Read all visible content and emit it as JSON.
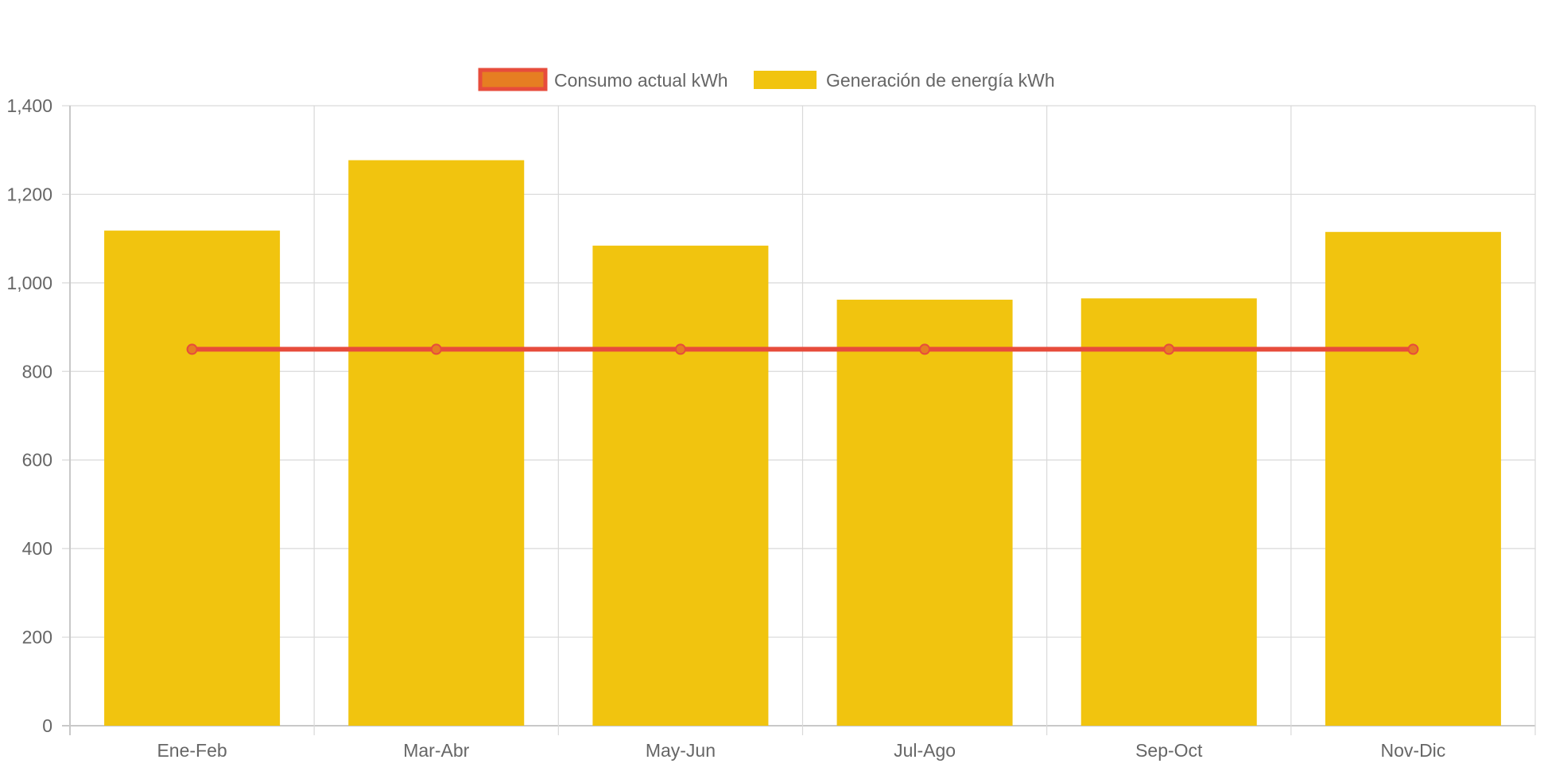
{
  "chart_data": {
    "type": "bar",
    "title": "",
    "xlabel": "",
    "ylabel": "",
    "categories": [
      "Ene-Feb",
      "Mar-Abr",
      "May-Jun",
      "Jul-Ago",
      "Sep-Oct",
      "Nov-Dic"
    ],
    "ylim": [
      0,
      1400
    ],
    "yticks": [
      0,
      200,
      400,
      600,
      800,
      1000,
      1200,
      1400
    ],
    "ytick_labels": [
      "0",
      "200",
      "400",
      "600",
      "800",
      "1,000",
      "1,200",
      "1,400"
    ],
    "grid": true,
    "legend_position": "top-center",
    "series": [
      {
        "name": "Consumo actual kWh",
        "type": "line",
        "values": [
          850,
          850,
          850,
          850,
          850,
          850
        ],
        "color": "#e74c3c",
        "fill": "#e67e22"
      },
      {
        "name": "Generación de energía kWh",
        "type": "bar",
        "values": [
          1118,
          1277,
          1084,
          962,
          965,
          1115
        ],
        "color": "#f1c40f"
      }
    ]
  },
  "colors": {
    "grid": "#d9d9d9",
    "axis": "#c8c8c8",
    "text": "#666666"
  }
}
